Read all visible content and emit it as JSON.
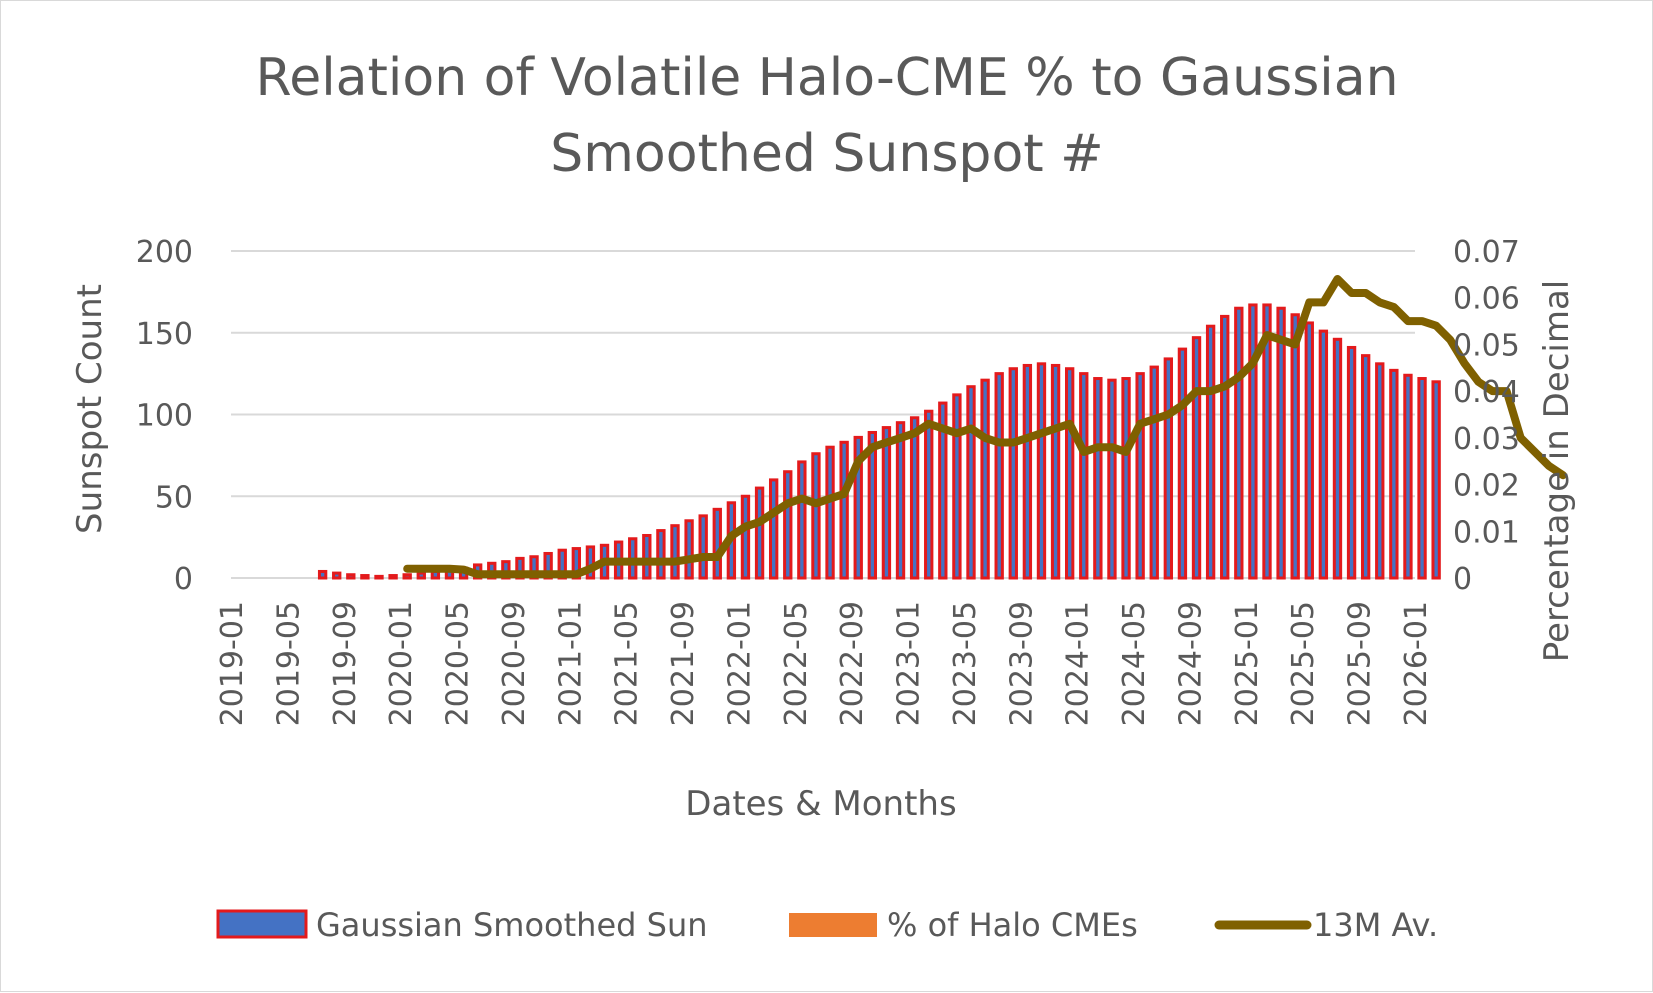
{
  "chart_data": {
    "type": "bar+line",
    "title_lines": [
      "Relation of Volatile Halo-CME % to Gaussian",
      "Smoothed Sunspot #"
    ],
    "xlabel": "Dates & Months",
    "ylabel": "Sunspot Count",
    "y2label": "Percentage in Decimal",
    "ylim": [
      0,
      200
    ],
    "y2lim": [
      0,
      0.07
    ],
    "yticks": [
      "0",
      "50",
      "100",
      "150",
      "200"
    ],
    "y2ticks": [
      "0",
      "0.01",
      "0.02",
      "0.03",
      "0.04",
      "0.05",
      "0.06",
      "0.07"
    ],
    "xlim_months": [
      0,
      84
    ],
    "xticks": [
      "2019-01",
      "2019-05",
      "2019-09",
      "2020-01",
      "2020-05",
      "2020-09",
      "2021-01",
      "2021-05",
      "2021-09",
      "2022-01",
      "2022-05",
      "2022-09",
      "2023-01",
      "2023-05",
      "2023-09",
      "2024-01",
      "2024-05",
      "2024-09",
      "2025-01",
      "2025-05",
      "2025-09",
      "2026-01"
    ],
    "grid": true,
    "legend_position": "bottom",
    "series": [
      {
        "name": "Gaussian Smoothed Sun",
        "kind": "bar",
        "axis": "left",
        "color": "#4472c4",
        "edge_color": "#e31a1c",
        "start_month": 6,
        "values": [
          4,
          3,
          2,
          1.5,
          1,
          1.5,
          2,
          3,
          4,
          5,
          6,
          8,
          9,
          10,
          12,
          13,
          15,
          17,
          18,
          19,
          20,
          22,
          24,
          26,
          29,
          32,
          35,
          38,
          42,
          46,
          50,
          55,
          60,
          65,
          71,
          76,
          80,
          83,
          86,
          89,
          92,
          95,
          98,
          102,
          107,
          112,
          117,
          121,
          125,
          128,
          130,
          131,
          130,
          128,
          125,
          122,
          121,
          122,
          125,
          129,
          134,
          140,
          147,
          154,
          160,
          165,
          167,
          167,
          165,
          161,
          156,
          151,
          146,
          141,
          136,
          131,
          127,
          124,
          122,
          120
        ]
      },
      {
        "name": "% of Halo CMEs",
        "kind": "bar",
        "axis": "right",
        "color": "#ed7d31",
        "values": []
      },
      {
        "name": "13M Av.",
        "kind": "line",
        "axis": "right",
        "color": "#7f6000",
        "start_month": 12,
        "values": [
          0.002,
          0.002,
          0.002,
          0.002,
          0.0018,
          0.0008,
          0.0008,
          0.0008,
          0.0008,
          0.0008,
          0.0008,
          0.0008,
          0.0008,
          0.002,
          0.0035,
          0.0035,
          0.0035,
          0.0035,
          0.0035,
          0.0035,
          0.004,
          0.0045,
          0.0045,
          0.009,
          0.011,
          0.012,
          0.014,
          0.016,
          0.017,
          0.016,
          0.017,
          0.018,
          0.025,
          0.028,
          0.029,
          0.03,
          0.031,
          0.033,
          0.032,
          0.031,
          0.032,
          0.03,
          0.029,
          0.029,
          0.03,
          0.031,
          0.032,
          0.033,
          0.027,
          0.028,
          0.028,
          0.027,
          0.033,
          0.034,
          0.035,
          0.037,
          0.04,
          0.04,
          0.041,
          0.043,
          0.046,
          0.052,
          0.051,
          0.05,
          0.059,
          0.059,
          0.064,
          0.061,
          0.061,
          0.059,
          0.058,
          0.055,
          0.055,
          0.054,
          0.051,
          0.046,
          0.042,
          0.04,
          0.04,
          0.03,
          0.027,
          0.024,
          0.022
        ]
      }
    ]
  }
}
